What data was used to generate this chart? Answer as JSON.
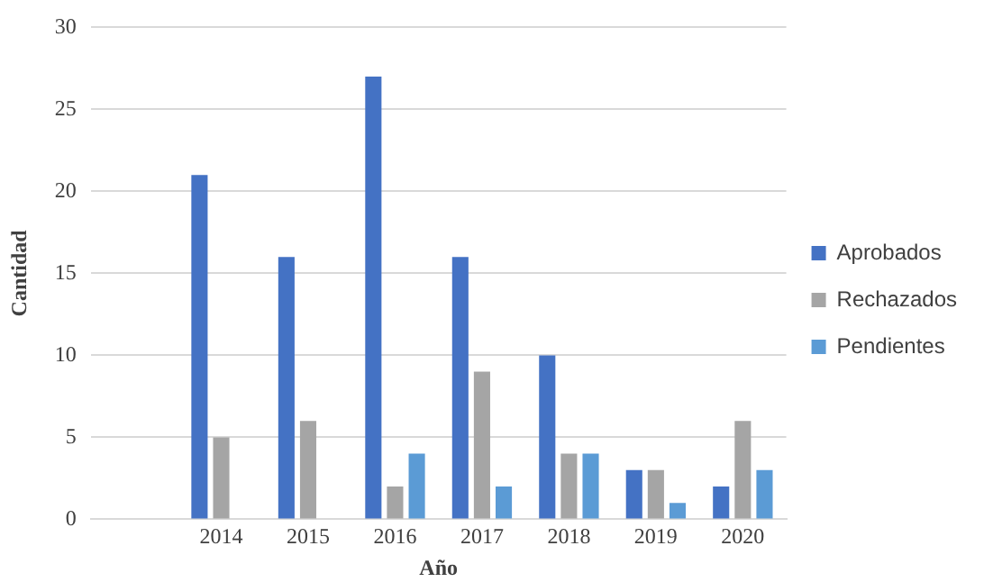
{
  "chart_data": {
    "type": "bar",
    "xlabel": "Año",
    "ylabel": "Cantidad",
    "categories": [
      null,
      "2014",
      "2015",
      "2016",
      "2017",
      "2018",
      "2019",
      "2020"
    ],
    "series": [
      {
        "name": "Aprobados",
        "color": "#4472c4",
        "values": [
          null,
          21,
          16,
          27,
          16,
          10,
          3,
          2
        ]
      },
      {
        "name": "Rechazados",
        "color": "#a5a5a5",
        "values": [
          null,
          5,
          6,
          2,
          9,
          4,
          3,
          6
        ]
      },
      {
        "name": "Pendientes",
        "color": "#5b9bd5",
        "values": [
          null,
          null,
          null,
          4,
          2,
          4,
          1,
          3
        ]
      }
    ],
    "ylim": [
      0,
      30
    ],
    "yticks": [
      0,
      5,
      10,
      15,
      20,
      25,
      30
    ],
    "grid": "y",
    "legend": "right"
  }
}
